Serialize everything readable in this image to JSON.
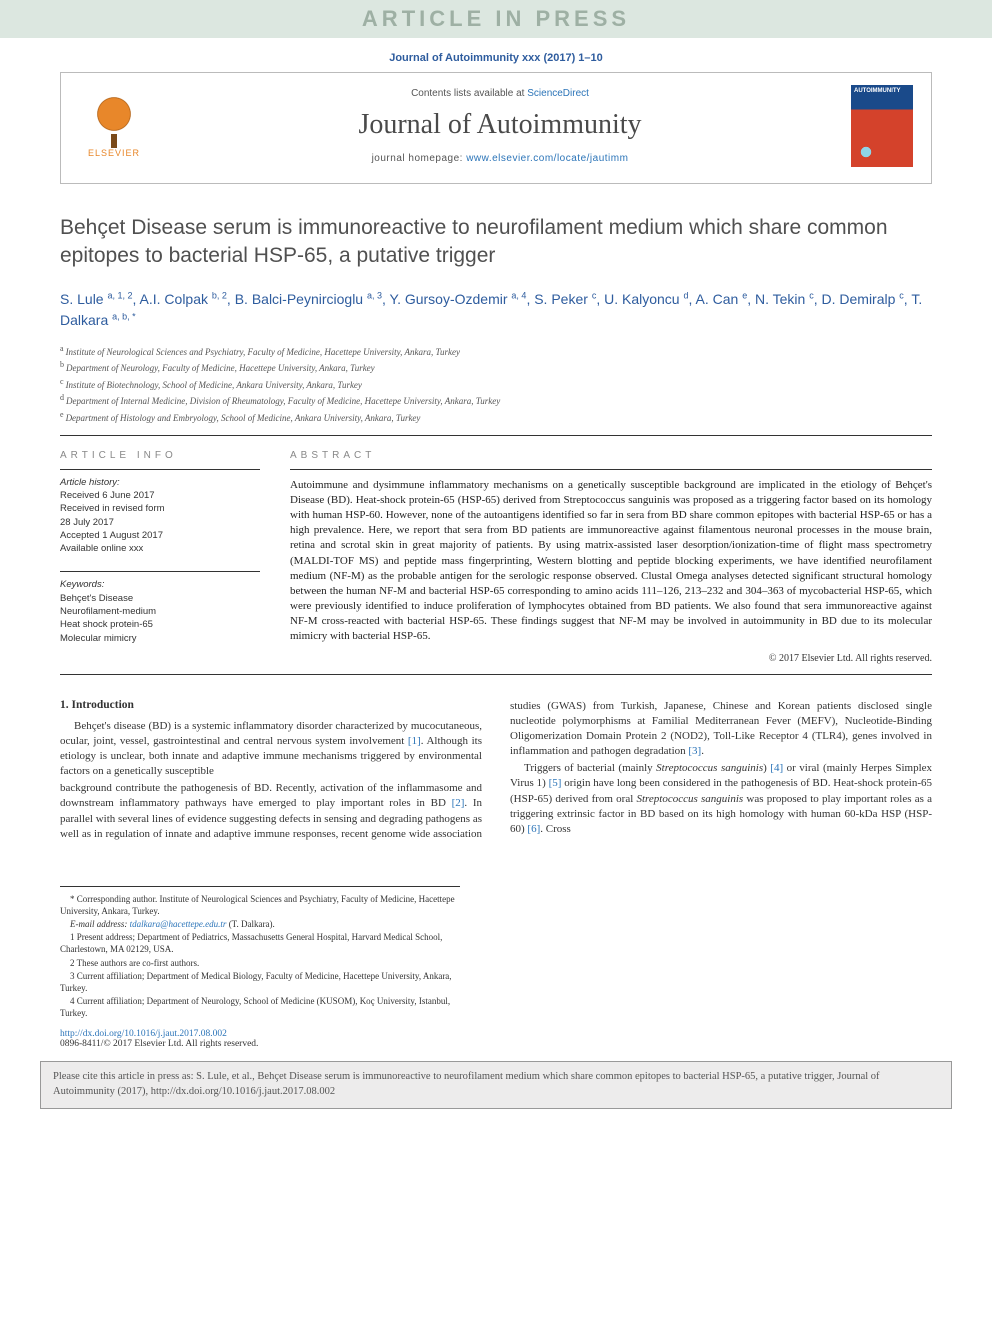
{
  "banner": "ARTICLE IN PRESS",
  "journal_ref": "Journal of Autoimmunity xxx (2017) 1–10",
  "header": {
    "publisher_name": "ELSEVIER",
    "contents_prefix": "Contents lists available at ",
    "contents_link": "ScienceDirect",
    "journal_name": "Journal of Autoimmunity",
    "homepage_prefix": "journal homepage: ",
    "homepage_url": "www.elsevier.com/locate/jautimm",
    "cover_text": "AUTOIMMUNITY"
  },
  "article": {
    "title": "Behçet Disease serum is immunoreactive to neurofilament medium which share common epitopes to bacterial HSP-65, a putative trigger",
    "authors": [
      {
        "name": "S. Lule",
        "aff": "a, 1, 2"
      },
      {
        "name": "A.I. Colpak",
        "aff": "b, 2"
      },
      {
        "name": "B. Balci-Peynircioglu",
        "aff": "a, 3"
      },
      {
        "name": "Y. Gursoy-Ozdemir",
        "aff": "a, 4"
      },
      {
        "name": "S. Peker",
        "aff": "c"
      },
      {
        "name": "U. Kalyoncu",
        "aff": "d"
      },
      {
        "name": "A. Can",
        "aff": "e"
      },
      {
        "name": "N. Tekin",
        "aff": "c"
      },
      {
        "name": "D. Demiralp",
        "aff": "c"
      },
      {
        "name": "T. Dalkara",
        "aff": "a, b, *"
      }
    ],
    "affiliations": [
      {
        "sup": "a",
        "text": "Institute of Neurological Sciences and Psychiatry, Faculty of Medicine, Hacettepe University, Ankara, Turkey"
      },
      {
        "sup": "b",
        "text": "Department of Neurology, Faculty of Medicine, Hacettepe University, Ankara, Turkey"
      },
      {
        "sup": "c",
        "text": "Institute of Biotechnology, School of Medicine, Ankara University, Ankara, Turkey"
      },
      {
        "sup": "d",
        "text": "Department of Internal Medicine, Division of Rheumatology, Faculty of Medicine, Hacettepe University, Ankara, Turkey"
      },
      {
        "sup": "e",
        "text": "Department of Histology and Embryology, School of Medicine, Ankara University, Ankara, Turkey"
      }
    ]
  },
  "info": {
    "section_label": "ARTICLE INFO",
    "history_label": "Article history:",
    "received": "Received 6 June 2017",
    "revised1": "Received in revised form",
    "revised2": "28 July 2017",
    "accepted": "Accepted 1 August 2017",
    "online": "Available online xxx",
    "keywords_label": "Keywords:",
    "keywords": [
      "Behçet's Disease",
      "Neurofilament-medium",
      "Heat shock protein-65",
      "Molecular mimicry"
    ]
  },
  "abstract": {
    "section_label": "ABSTRACT",
    "text": "Autoimmune and dysimmune inflammatory mechanisms on a genetically susceptible background are implicated in the etiology of Behçet's Disease (BD). Heat-shock protein-65 (HSP-65) derived from Streptococcus sanguinis was proposed as a triggering factor based on its homology with human HSP-60. However, none of the autoantigens identified so far in sera from BD share common epitopes with bacterial HSP-65 or has a high prevalence. Here, we report that sera from BD patients are immunoreactive against filamentous neuronal processes in the mouse brain, retina and scrotal skin in great majority of patients. By using matrix-assisted laser desorption/ionization-time of flight mass spectrometry (MALDI-TOF MS) and peptide mass fingerprinting, Western blotting and peptide blocking experiments, we have identified neurofilament medium (NF-M) as the probable antigen for the serologic response observed. Clustal Omega analyses detected significant structural homology between the human NF-M and bacterial HSP-65 corresponding to amino acids 111–126, 213–232 and 304–363 of mycobacterial HSP-65, which were previously identified to induce proliferation of lymphocytes obtained from BD patients. We also found that sera immunoreactive against NF-M cross-reacted with bacterial HSP-65. These findings suggest that NF-M may be involved in autoimmunity in BD due to its molecular mimicry with bacterial HSP-65.",
    "copyright": "© 2017 Elsevier Ltd. All rights reserved."
  },
  "body": {
    "sec1_heading": "1. Introduction",
    "p1_a": "Behçet's disease (BD) is a systemic inflammatory disorder characterized by mucocutaneous, ocular, joint, vessel, gastrointestinal and central nervous system involvement ",
    "r1": "[1]",
    "p1_b": ". Although its etiology is unclear, both innate and adaptive immune mechanisms triggered by environmental factors on a genetically susceptible",
    "p2_a": "background contribute the pathogenesis of BD. Recently, activation of the inflammasome and downstream inflammatory pathways have emerged to play important roles in BD ",
    "r2": "[2]",
    "p2_b": ". In parallel with several lines of evidence suggesting defects in sensing and degrading pathogens as well as in regulation of innate and adaptive immune responses, recent genome wide association studies (GWAS) from Turkish, Japanese, Chinese and Korean patients disclosed single nucleotide polymorphisms at Familial Mediterranean Fever (MEFV), Nucleotide-Binding Oligomerization Domain Protein 2 (NOD2), Toll-Like Receptor 4 (TLR4), genes involved in inflammation and pathogen degradation ",
    "r3": "[3]",
    "p2_c": ".",
    "p3_a": "Triggers of bacterial (mainly ",
    "p3_em1": "Streptococcus sanguinis",
    "p3_b": ") ",
    "r4": "[4]",
    "p3_c": " or viral (mainly Herpes Simplex Virus 1) ",
    "r5": "[5]",
    "p3_d": " origin have long been considered in the pathogenesis of BD. Heat-shock protein-65 (HSP-65) derived from oral ",
    "p3_em2": "Streptococcus sanguinis",
    "p3_e": " was proposed to play important roles as a triggering extrinsic factor in BD based on its high homology with human 60-kDa HSP (HSP-60) ",
    "r6": "[6]",
    "p3_f": ". Cross"
  },
  "footnotes": {
    "corr": "* Corresponding author. Institute of Neurological Sciences and Psychiatry, Faculty of Medicine, Hacettepe University, Ankara, Turkey.",
    "email_label": "E-mail address: ",
    "email": "tdalkara@hacettepe.edu.tr",
    "email_whom": " (T. Dalkara).",
    "n1": "1 Present address; Department of Pediatrics, Massachusetts General Hospital, Harvard Medical School, Charlestown, MA 02129, USA.",
    "n2": "2 These authors are co-first authors.",
    "n3": "3 Current affiliation; Department of Medical Biology, Faculty of Medicine, Hacettepe University, Ankara, Turkey.",
    "n4": "4 Current affiliation; Department of Neurology, School of Medicine (KUSOM), Koç University, Istanbul, Turkey."
  },
  "doi": {
    "url": "http://dx.doi.org/10.1016/j.jaut.2017.08.002",
    "issn_line": "0896-8411/© 2017 Elsevier Ltd. All rights reserved."
  },
  "cite_box": "Please cite this article in press as: S. Lule, et al., Behçet Disease serum is immunoreactive to neurofilament medium which share common epitopes to bacterial HSP-65, a putative trigger, Journal of Autoimmunity (2017), http://dx.doi.org/10.1016/j.jaut.2017.08.002",
  "colors": {
    "banner_bg": "#dce7e0",
    "banner_text": "#9eb0a4",
    "link_blue": "#2b74b8",
    "author_blue": "#2e5c9e",
    "elsevier_orange": "#e8872a",
    "cite_bg": "#edecec"
  },
  "typography": {
    "title_fontsize": 21,
    "journal_name_fontsize": 28,
    "body_fontsize": 11,
    "abstract_fontsize": 11,
    "footnote_fontsize": 9
  }
}
